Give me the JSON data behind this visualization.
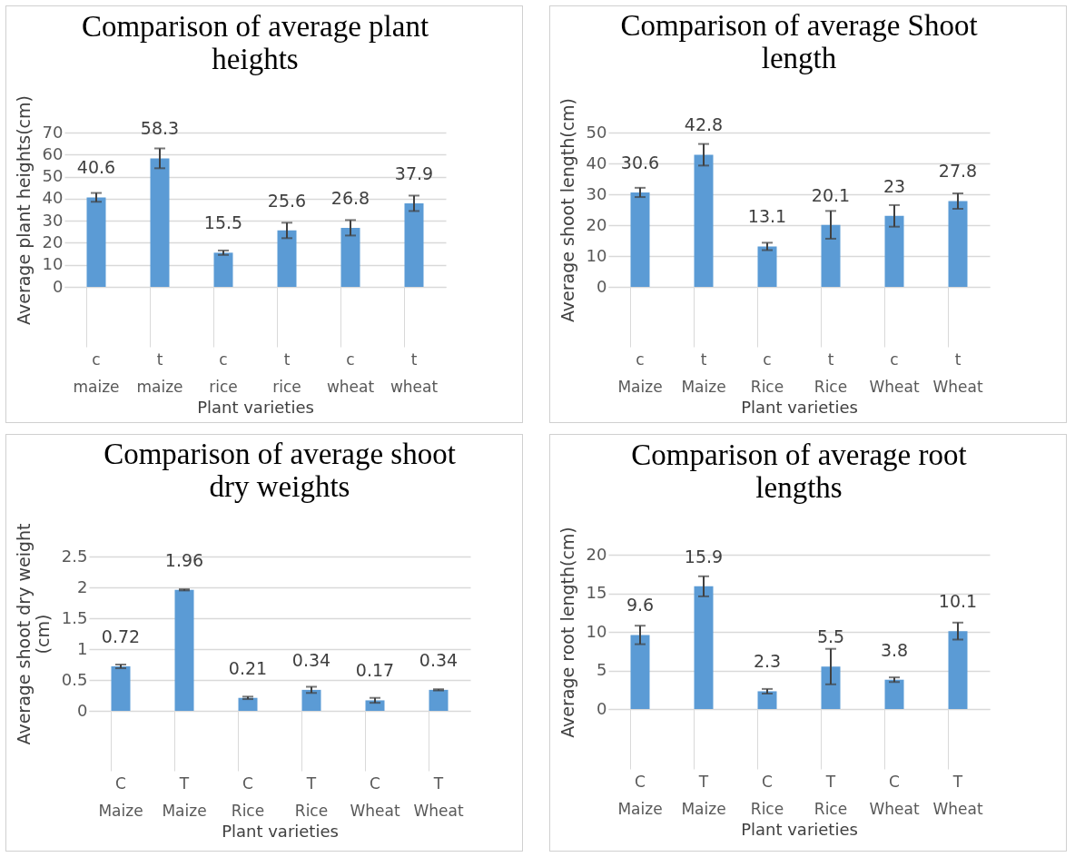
{
  "chart_data": [
    {
      "type": "bar",
      "title": "Comparison of average plant heights",
      "xlabel": "Plant varieties",
      "ylabel": "Average plant heights(cm)",
      "categories": [
        "c\nmaize",
        "t\nmaize",
        "c\nrice",
        "t\nrice",
        "c\nwheat",
        "t\nwheat"
      ],
      "values": [
        40.6,
        58.3,
        15.5,
        25.6,
        26.8,
        37.9
      ],
      "errors": [
        2,
        4.5,
        1,
        3.5,
        3.5,
        3.5
      ],
      "color": "#5b9bd5",
      "ylim": [
        0,
        70
      ],
      "yticks": [
        0,
        10,
        20,
        30,
        40,
        50,
        60,
        70
      ],
      "grid": "y",
      "data_labels": true
    },
    {
      "type": "bar",
      "title": "Comparison of average Shoot length",
      "xlabel": "Plant varieties",
      "ylabel": "Average  shoot length(cm)",
      "categories": [
        "c\nMaize",
        "t\nMaize",
        "c\nRice",
        "t\nRice",
        "c\nWheat",
        "t\nWheat"
      ],
      "values": [
        30.6,
        42.8,
        13.1,
        20.1,
        23,
        27.8
      ],
      "errors": [
        1.5,
        3.5,
        1.2,
        4.5,
        3.5,
        2.5
      ],
      "color": "#5b9bd5",
      "ylim": [
        0,
        50
      ],
      "yticks": [
        0,
        10,
        20,
        30,
        40,
        50
      ],
      "grid": "y",
      "data_labels": true
    },
    {
      "type": "bar",
      "title": "Comparison of average shoot dry weights",
      "xlabel": "Plant varieties",
      "ylabel": "Average shoot dry weight (cm)",
      "categories": [
        "C\nMaize",
        "T\nMaize",
        "C\nRice",
        "T\nRice",
        "C\nWheat",
        "T\nWheat"
      ],
      "values": [
        0.72,
        1.96,
        0.21,
        0.34,
        0.17,
        0.34
      ],
      "errors": [
        0.03,
        0.01,
        0.02,
        0.05,
        0.04,
        0.01
      ],
      "color": "#5b9bd5",
      "ylim": [
        0,
        2.5
      ],
      "yticks": [
        0,
        0.5,
        1,
        1.5,
        2,
        2.5
      ],
      "grid": "y",
      "data_labels": true
    },
    {
      "type": "bar",
      "title": "Comparison of average root lengths",
      "xlabel": "Plant varieties",
      "ylabel": "Average root  length(cm)",
      "categories": [
        "C\nMaize",
        "T\nMaize",
        "C\nRice",
        "T\nRice",
        "C\nWheat",
        "T\nWheat"
      ],
      "values": [
        9.6,
        15.9,
        2.3,
        5.5,
        3.8,
        10.1
      ],
      "errors": [
        1.2,
        1.3,
        0.3,
        2.3,
        0.3,
        1.1
      ],
      "color": "#5b9bd5",
      "ylim": [
        0,
        20
      ],
      "yticks": [
        0,
        5,
        10,
        15,
        20
      ],
      "grid": "y",
      "data_labels": true
    }
  ]
}
